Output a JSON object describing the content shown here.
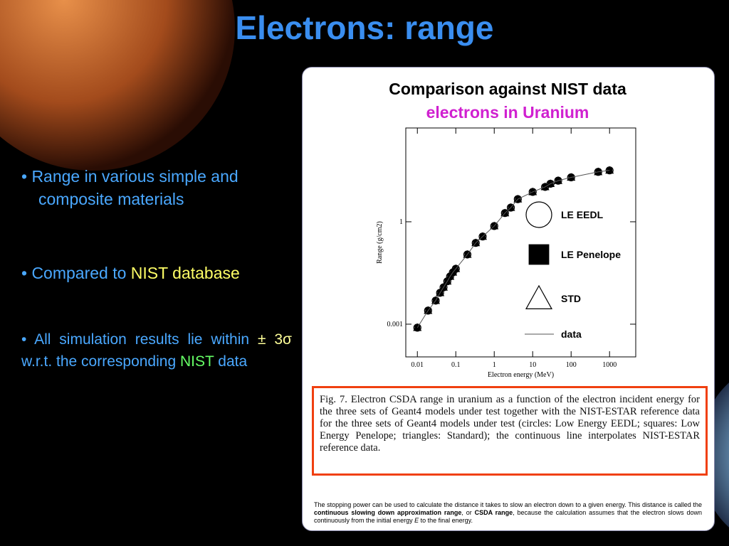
{
  "title": "Electrons: range",
  "bullets": [
    [
      {
        "text": "• Range in various simple and composite materials",
        "color": "#4aa8ff"
      }
    ],
    [
      {
        "text": "• Compared to ",
        "color": "#4aa8ff"
      },
      {
        "text": "NIST database",
        "color": "#ffff66"
      }
    ],
    [
      {
        "text": "• All simulation results lie within ",
        "color": "#4aa8ff"
      },
      {
        "text": "± 3σ",
        "color": "#ffff99"
      },
      {
        "text": " w.r.t. the corresponding ",
        "color": "#4aa8ff"
      },
      {
        "text": "NIST",
        "color": "#66ff66"
      },
      {
        "text": " data",
        "color": "#4aa8ff"
      }
    ]
  ],
  "panel": {
    "title": "Comparison against NIST data",
    "subtitle": "electrons in Uranium"
  },
  "chart_data": {
    "type": "scatter",
    "x": [
      0.01,
      0.019,
      0.03,
      0.039,
      0.048,
      0.06,
      0.071,
      0.084,
      0.1,
      0.2,
      0.33,
      0.5,
      1,
      1.9,
      2.7,
      4.1,
      10,
      21,
      29,
      46,
      100,
      506,
      1000
    ],
    "series": [
      {
        "name": "LE EEDL",
        "marker": "circle",
        "color": "#000000",
        "values": [
          0.00079,
          0.0025,
          0.0049,
          0.0083,
          0.012,
          0.018,
          0.025,
          0.033,
          0.042,
          0.11,
          0.24,
          0.37,
          0.75,
          1.8,
          2.6,
          4.6,
          7.5,
          10.5,
          13,
          16,
          20,
          29,
          32
        ]
      },
      {
        "name": "LE Penelope",
        "marker": "square",
        "color": "#000000",
        "values": [
          0.00079,
          0.0025,
          0.0049,
          0.0083,
          0.012,
          0.018,
          0.025,
          0.033,
          0.042,
          0.11,
          0.24,
          0.37,
          0.75,
          1.8,
          2.6,
          4.6,
          7.5,
          10.5,
          13,
          16,
          20,
          29,
          32
        ]
      },
      {
        "name": "STD",
        "marker": "triangle",
        "color": "#000000",
        "values": [
          0.00079,
          0.0025,
          0.0049,
          0.0083,
          0.012,
          0.018,
          0.025,
          0.033,
          0.042,
          0.11,
          0.24,
          0.37,
          0.75,
          1.8,
          2.6,
          4.6,
          7.5,
          10.5,
          13,
          16,
          20,
          29,
          32
        ]
      },
      {
        "name": "data",
        "marker": "line",
        "color": "#555555",
        "values": [
          0.00079,
          0.0025,
          0.0049,
          0.0083,
          0.012,
          0.018,
          0.025,
          0.033,
          0.042,
          0.11,
          0.24,
          0.37,
          0.75,
          1.8,
          2.6,
          4.6,
          7.5,
          10.5,
          13,
          16,
          20,
          29,
          32
        ]
      }
    ],
    "xlabel": "Electron energy (MeV)",
    "ylabel": "Range (g/cm2)",
    "xlog": true,
    "ylog": true,
    "xlim": [
      0.005,
      4800
    ],
    "ylim": [
      0.00011,
      560
    ],
    "xticks": [
      0.01,
      0.1,
      1,
      10,
      100,
      1000
    ],
    "yticks": [
      0.001,
      1
    ]
  },
  "caption": "Fig. 7.   Electron CSDA range in uranium as a function of the electron incident energy for the three sets of Geant4 models under test together with the NIST-ESTAR reference data for the three sets of Geant4 models under test (circles: Low Energy EEDL; squares: Low Energy Penelope; triangles: Standard); the continuous line interpolates NIST-ESTAR reference data.",
  "footnote": [
    {
      "text": "The stopping power can be used to calculate the distance it takes to slow an electron down to a given energy. This distance is called the ",
      "style": "normal"
    },
    {
      "text": "continuous slowing down approximation range",
      "style": "bold"
    },
    {
      "text": ", or ",
      "style": "normal"
    },
    {
      "text": "CSDA range",
      "style": "bold"
    },
    {
      "text": ", because the calculation assumes that the electron slows down continuously from the initial energy ",
      "style": "normal"
    },
    {
      "text": "E",
      "style": "italic"
    },
    {
      "text": " to the final energy.",
      "style": "normal"
    }
  ]
}
